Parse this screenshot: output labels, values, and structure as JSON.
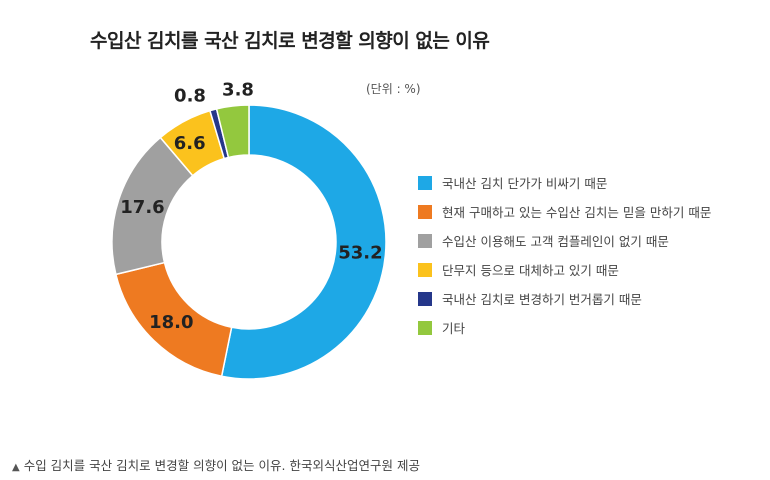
{
  "chart_data": {
    "type": "pie",
    "title": "수입산 김치를 국산 김치로 변경할 의향이 없는 이유",
    "unit_label": "(단위 : %)",
    "categories": [
      "국내산 김치 단가가 비싸기 때문",
      "현재 구매하고 있는 수입산 김치는 믿을 만하기 때문",
      "수입산 이용해도 고객 컴플레인이 없기 때문",
      "단무지 등으로 대체하고 있기 때문",
      "국내산 김치로 변경하기 번거롭기 때문",
      "기타"
    ],
    "values": [
      53.2,
      18.0,
      17.6,
      6.6,
      0.8,
      3.8
    ],
    "value_labels": [
      "53.2",
      "18.0",
      "17.6",
      "6.6",
      "0.8",
      "3.8"
    ],
    "colors": [
      "#1EA8E6",
      "#EE7A21",
      "#A0A0A0",
      "#FBC21D",
      "#25378A",
      "#93C83E"
    ],
    "legend_position": "right"
  },
  "caption": {
    "marker": "▲",
    "text": "수입 김치를 국산 김치로 변경할 의향이 없는 이유. 한국외식산업연구원 제공"
  }
}
